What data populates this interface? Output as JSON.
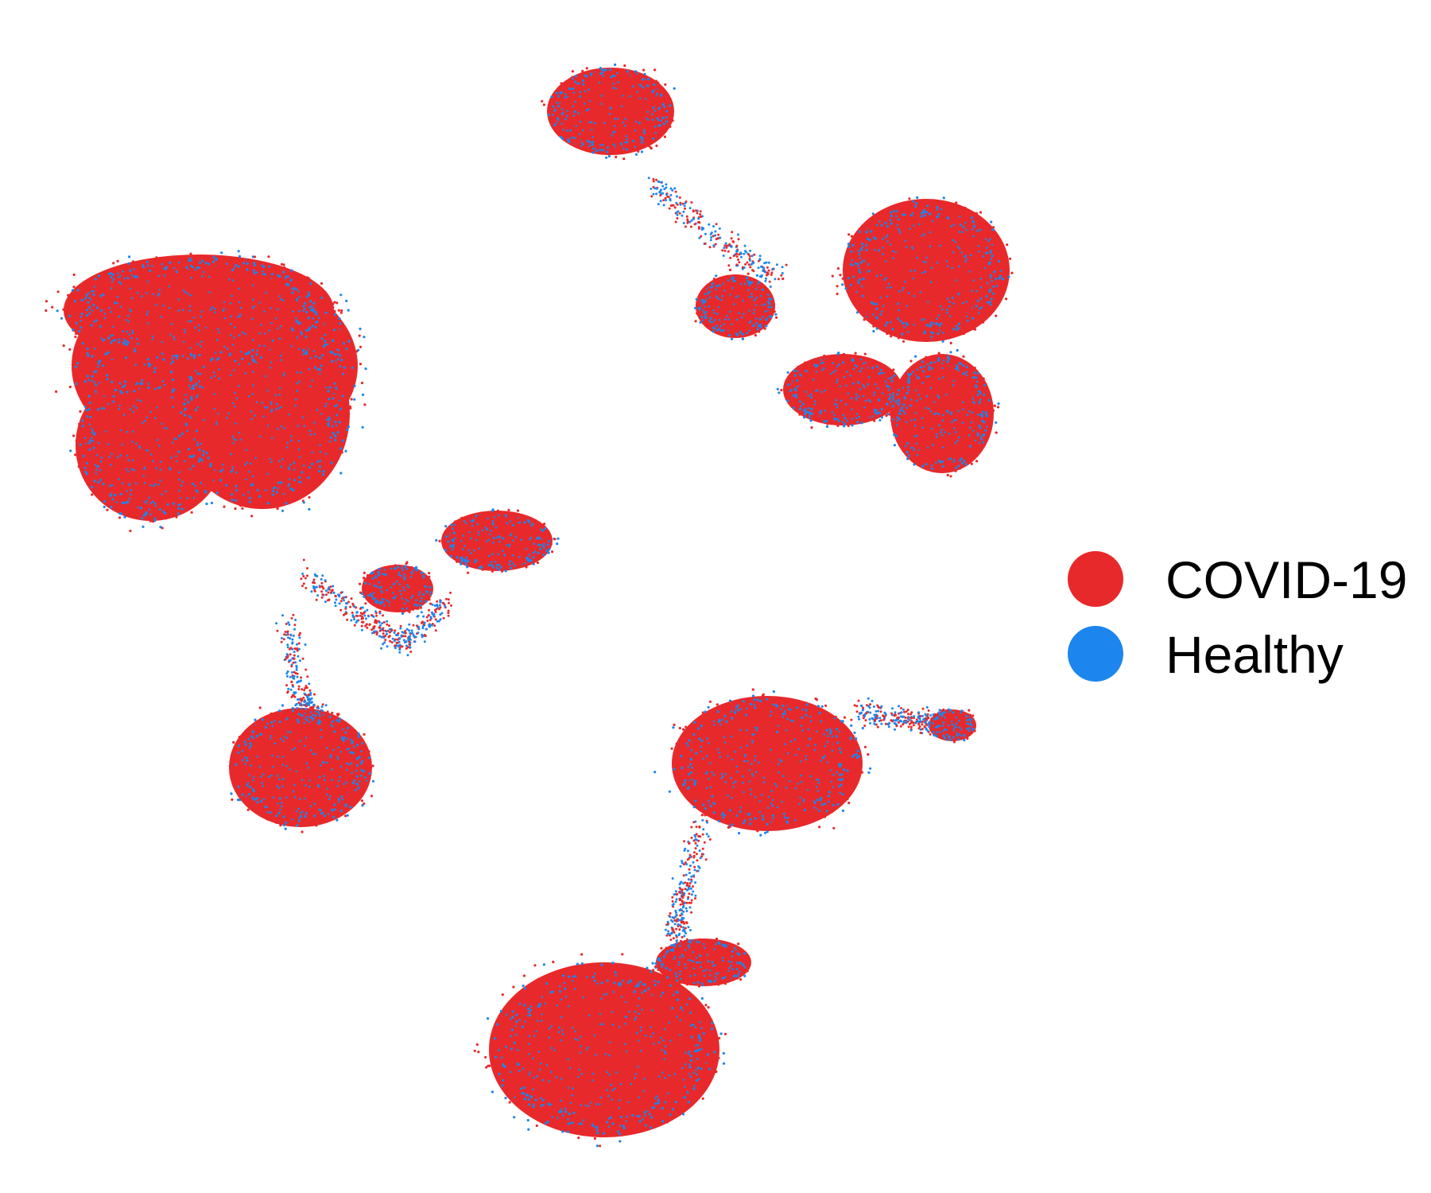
{
  "chart_data": {
    "type": "scatter",
    "title": "",
    "xlabel": "",
    "ylabel": "",
    "axes_visible": false,
    "grid": false,
    "legend_placement": "right",
    "series": [
      {
        "name": "COVID-19",
        "color": "#e8292b"
      },
      {
        "name": "Healthy",
        "color": "#1c86ee"
      }
    ]
  }
}
